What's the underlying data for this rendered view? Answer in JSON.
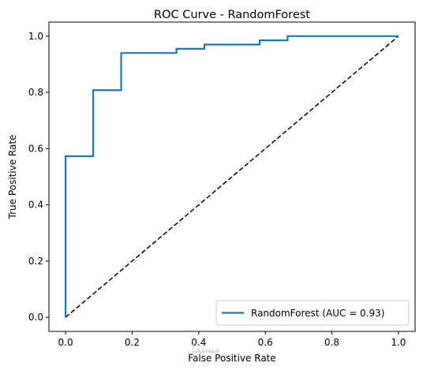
{
  "chart_data": {
    "type": "line",
    "title": "ROC Curve - RandomForest",
    "xlabel": "False Positive Rate",
    "ylabel": "True Positive Rate",
    "xlim": [
      -0.05,
      1.05
    ],
    "ylim": [
      -0.05,
      1.05
    ],
    "xticks": [
      0.0,
      0.2,
      0.4,
      0.6,
      0.8,
      1.0
    ],
    "yticks": [
      0.0,
      0.2,
      0.4,
      0.6,
      0.8,
      1.0
    ],
    "xtick_labels": [
      "0.0",
      "0.2",
      "0.4",
      "0.6",
      "0.8",
      "1.0"
    ],
    "ytick_labels": [
      "0.0",
      "0.2",
      "0.4",
      "0.6",
      "0.8",
      "1.0"
    ],
    "grid": false,
    "legend_position": "lower-right",
    "series": [
      {
        "name": "RandomForest (AUC = 0.93)",
        "color": "#1f77b4",
        "style": "solid",
        "x": [
          0.0,
          0.0,
          0.083,
          0.083,
          0.167,
          0.167,
          0.333,
          0.333,
          0.417,
          0.417,
          0.583,
          0.583,
          0.667,
          0.667,
          1.0
        ],
        "y": [
          0.0,
          0.573,
          0.573,
          0.808,
          0.808,
          0.94,
          0.94,
          0.955,
          0.955,
          0.97,
          0.97,
          0.985,
          0.985,
          1.0,
          1.0
        ]
      },
      {
        "color": "#000000",
        "style": "dashed",
        "x": [
          0.0,
          1.0
        ],
        "y": [
          0.0,
          1.0
        ]
      }
    ],
    "legend": [
      {
        "label": "RandomForest (AUC = 0.93)",
        "color": "#1f77b4"
      }
    ]
  },
  "watermark": "مستقل"
}
